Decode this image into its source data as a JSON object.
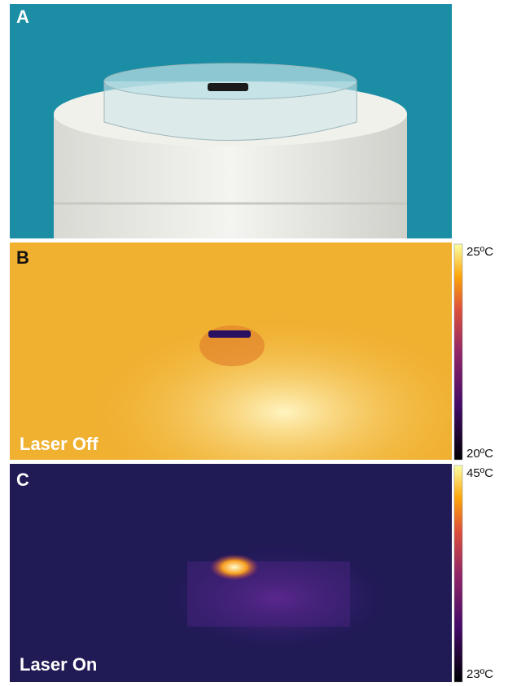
{
  "panels": [
    {
      "label": "A"
    },
    {
      "label": "B",
      "caption": "Laser Off",
      "scale": {
        "max": "25ºC",
        "min": "20ºC"
      }
    },
    {
      "label": "C",
      "caption": "Laser On",
      "scale": {
        "max": "45ºC",
        "min": "23ºC"
      }
    }
  ]
}
